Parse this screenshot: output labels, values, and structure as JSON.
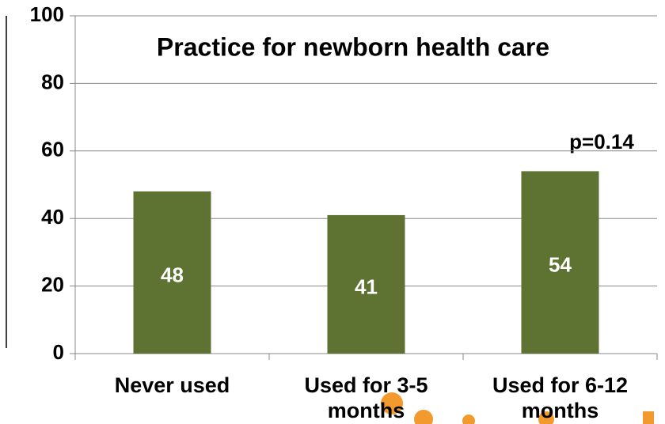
{
  "chart_data": {
    "type": "bar",
    "title": "Practice for newborn health care",
    "annotation": "p=0.14",
    "categories": [
      "Never used",
      "Used for 3-5 months",
      "Used for 6-12 months"
    ],
    "values": [
      48,
      41,
      54
    ],
    "color": "#5e7232",
    "ylim": [
      0,
      100
    ],
    "yticks": [
      0,
      20,
      40,
      60,
      80,
      100
    ],
    "grid": true
  }
}
